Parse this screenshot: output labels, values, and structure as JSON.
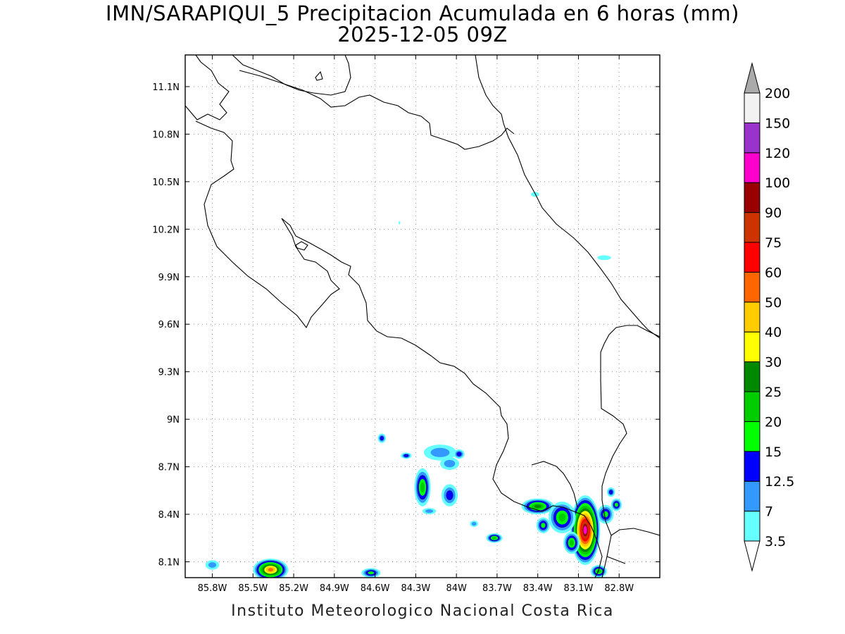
{
  "title": {
    "line1": "IMN/SARAPIQUI_5 Precipitacion Acumulada en 6 horas (mm)",
    "line2": "2025-12-05 09Z"
  },
  "credit": "Instituto Meteorologico Nacional Costa Rica",
  "map": {
    "lon_range": [
      -86.0,
      -82.5
    ],
    "lat_range": [
      8.0,
      11.3
    ],
    "lon_ticks": [
      {
        "value": -85.8,
        "label": "85.8W"
      },
      {
        "value": -85.5,
        "label": "85.5W"
      },
      {
        "value": -85.2,
        "label": "85.2W"
      },
      {
        "value": -84.9,
        "label": "84.9W"
      },
      {
        "value": -84.6,
        "label": "84.6W"
      },
      {
        "value": -84.3,
        "label": "84.3W"
      },
      {
        "value": -84.0,
        "label": "84W"
      },
      {
        "value": -83.7,
        "label": "83.7W"
      },
      {
        "value": -83.4,
        "label": "83.4W"
      },
      {
        "value": -83.1,
        "label": "83.1W"
      },
      {
        "value": -82.8,
        "label": "82.8W"
      }
    ],
    "lat_ticks": [
      {
        "value": 8.1,
        "label": "8.1N"
      },
      {
        "value": 8.4,
        "label": "8.4N"
      },
      {
        "value": 8.7,
        "label": "8.7N"
      },
      {
        "value": 9.0,
        "label": "9N"
      },
      {
        "value": 9.3,
        "label": "9.3N"
      },
      {
        "value": 9.6,
        "label": "9.6N"
      },
      {
        "value": 9.9,
        "label": "9.9N"
      },
      {
        "value": 10.2,
        "label": "10.2N"
      },
      {
        "value": 10.5,
        "label": "10.5N"
      },
      {
        "value": 10.8,
        "label": "10.8N"
      },
      {
        "value": 11.1,
        "label": "11.1N"
      }
    ],
    "grid": "dotted"
  },
  "legend": {
    "levels": [
      {
        "label": "3.5",
        "color": "#66ffff"
      },
      {
        "label": "7",
        "color": "#3399ff"
      },
      {
        "label": "12.5",
        "color": "#0000ff"
      },
      {
        "label": "15",
        "color": "#00ff00"
      },
      {
        "label": "20",
        "color": "#00cc00"
      },
      {
        "label": "25",
        "color": "#008800"
      },
      {
        "label": "30",
        "color": "#ffff00"
      },
      {
        "label": "40",
        "color": "#ffcc00"
      },
      {
        "label": "50",
        "color": "#ff6600"
      },
      {
        "label": "60",
        "color": "#ff0000"
      },
      {
        "label": "75",
        "color": "#cc3300"
      },
      {
        "label": "90",
        "color": "#990000"
      },
      {
        "label": "100",
        "color": "#ff00cc"
      },
      {
        "label": "120",
        "color": "#9933cc"
      },
      {
        "label": "150",
        "color": "#f2f2f2"
      },
      {
        "label": "200",
        "color": "#aaaaaa"
      }
    ]
  },
  "precip_blobs": [
    {
      "lon": -83.05,
      "lat": 8.3,
      "rx": 0.11,
      "ry": 0.22,
      "level": 12
    },
    {
      "lon": -83.22,
      "lat": 8.38,
      "rx": 0.1,
      "ry": 0.1,
      "level": 4
    },
    {
      "lon": -83.4,
      "lat": 8.45,
      "rx": 0.12,
      "ry": 0.05,
      "level": 5
    },
    {
      "lon": -83.36,
      "lat": 8.33,
      "rx": 0.05,
      "ry": 0.05,
      "level": 3
    },
    {
      "lon": -83.15,
      "lat": 8.22,
      "rx": 0.06,
      "ry": 0.07,
      "level": 4
    },
    {
      "lon": -82.9,
      "lat": 8.4,
      "rx": 0.06,
      "ry": 0.06,
      "level": 3
    },
    {
      "lon": -82.82,
      "lat": 8.46,
      "rx": 0.04,
      "ry": 0.04,
      "level": 3
    },
    {
      "lon": -82.86,
      "lat": 8.54,
      "rx": 0.03,
      "ry": 0.03,
      "level": 2
    },
    {
      "lon": -82.95,
      "lat": 8.04,
      "rx": 0.06,
      "ry": 0.04,
      "level": 4
    },
    {
      "lon": -83.72,
      "lat": 8.25,
      "rx": 0.06,
      "ry": 0.03,
      "level": 4
    },
    {
      "lon": -84.25,
      "lat": 8.57,
      "rx": 0.06,
      "ry": 0.12,
      "level": 4
    },
    {
      "lon": -84.05,
      "lat": 8.52,
      "rx": 0.06,
      "ry": 0.07,
      "level": 2
    },
    {
      "lon": -84.12,
      "lat": 8.79,
      "rx": 0.12,
      "ry": 0.05,
      "level": 1
    },
    {
      "lon": -84.05,
      "lat": 8.72,
      "rx": 0.07,
      "ry": 0.04,
      "level": 1
    },
    {
      "lon": -83.98,
      "lat": 8.78,
      "rx": 0.04,
      "ry": 0.03,
      "level": 2
    },
    {
      "lon": -84.37,
      "lat": 8.77,
      "rx": 0.04,
      "ry": 0.02,
      "level": 2
    },
    {
      "lon": -84.55,
      "lat": 8.88,
      "rx": 0.03,
      "ry": 0.03,
      "level": 2
    },
    {
      "lon": -83.87,
      "lat": 8.34,
      "rx": 0.03,
      "ry": 0.02,
      "level": 1
    },
    {
      "lon": -84.2,
      "lat": 8.42,
      "rx": 0.05,
      "ry": 0.02,
      "level": 1
    },
    {
      "lon": -85.37,
      "lat": 8.05,
      "rx": 0.13,
      "ry": 0.07,
      "level": 8
    },
    {
      "lon": -85.8,
      "lat": 8.08,
      "rx": 0.05,
      "ry": 0.03,
      "level": 1
    },
    {
      "lon": -84.63,
      "lat": 8.03,
      "rx": 0.07,
      "ry": 0.03,
      "level": 3
    },
    {
      "lon": -83.42,
      "lat": 10.42,
      "rx": 0.03,
      "ry": 0.015,
      "level": 0
    },
    {
      "lon": -82.91,
      "lat": 10.02,
      "rx": 0.05,
      "ry": 0.015,
      "level": 0
    },
    {
      "lon": -84.42,
      "lat": 10.24,
      "rx": 0.006,
      "ry": 0.01,
      "level": 0
    }
  ]
}
